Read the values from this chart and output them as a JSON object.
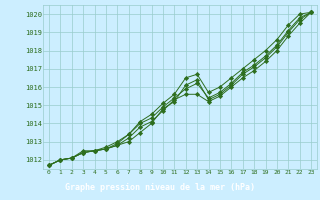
{
  "x": [
    0,
    1,
    2,
    3,
    4,
    5,
    6,
    7,
    8,
    9,
    10,
    11,
    12,
    13,
    14,
    15,
    16,
    17,
    18,
    19,
    20,
    21,
    22,
    23
  ],
  "line1": [
    1011.7,
    1012.0,
    1012.1,
    1012.4,
    1012.5,
    1012.6,
    1012.8,
    1013.0,
    1013.5,
    1014.0,
    1014.8,
    1015.2,
    1016.1,
    1016.4,
    1015.3,
    1015.6,
    1016.1,
    1016.7,
    1017.1,
    1017.6,
    1018.2,
    1019.0,
    1019.7,
    1020.1
  ],
  "line2": [
    1011.7,
    1012.0,
    1012.1,
    1012.4,
    1012.5,
    1012.6,
    1012.8,
    1013.2,
    1013.8,
    1014.1,
    1014.7,
    1015.3,
    1015.6,
    1015.6,
    1015.2,
    1015.5,
    1016.0,
    1016.5,
    1016.9,
    1017.4,
    1018.0,
    1018.8,
    1019.5,
    1020.1
  ],
  "line3": [
    1011.7,
    1012.0,
    1012.1,
    1012.4,
    1012.5,
    1012.6,
    1012.9,
    1013.4,
    1014.0,
    1014.3,
    1014.9,
    1015.4,
    1015.9,
    1016.2,
    1015.4,
    1015.7,
    1016.2,
    1016.8,
    1017.2,
    1017.7,
    1018.3,
    1019.1,
    1019.8,
    1020.1
  ],
  "line4": [
    1011.7,
    1012.0,
    1012.1,
    1012.5,
    1012.5,
    1012.7,
    1013.0,
    1013.4,
    1014.1,
    1014.5,
    1015.1,
    1015.6,
    1016.5,
    1016.7,
    1015.7,
    1016.0,
    1016.5,
    1017.0,
    1017.5,
    1018.0,
    1018.6,
    1019.4,
    1020.0,
    1020.1
  ],
  "ylim": [
    1011.5,
    1020.5
  ],
  "yticks": [
    1012,
    1013,
    1014,
    1015,
    1016,
    1017,
    1018,
    1019,
    1020
  ],
  "xlim": [
    -0.5,
    23.5
  ],
  "xticks": [
    0,
    1,
    2,
    3,
    4,
    5,
    6,
    7,
    8,
    9,
    10,
    11,
    12,
    13,
    14,
    15,
    16,
    17,
    18,
    19,
    20,
    21,
    22,
    23
  ],
  "line_color": "#2d6e1e",
  "bg_color": "#cceeff",
  "grid_color": "#99cccc",
  "xlabel": "Graphe pression niveau de la mer (hPa)",
  "xlabel_bg": "#336633",
  "xlabel_color": "#ffffff",
  "marker": "D",
  "marker_size": 2.2,
  "linewidth": 0.7
}
